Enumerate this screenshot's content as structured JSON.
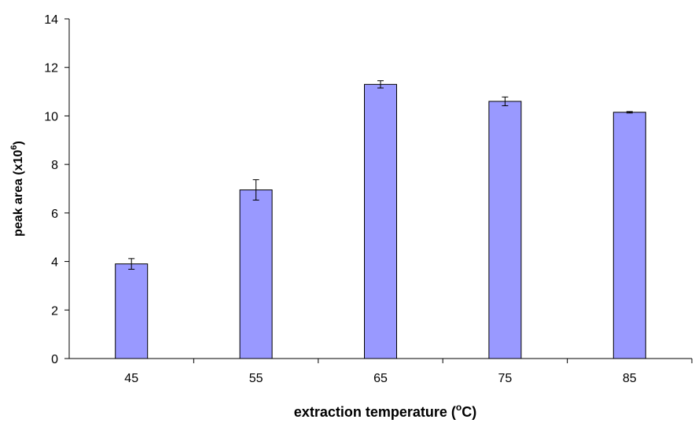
{
  "chart_data": {
    "type": "bar",
    "x_label": [
      "extraction temperature (",
      "o",
      "C)"
    ],
    "y_label": [
      "peak area (x10",
      "6",
      ")"
    ],
    "categories": [
      "45",
      "55",
      "65",
      "75",
      "85"
    ],
    "values": [
      3.9,
      6.95,
      11.3,
      10.6,
      10.15
    ],
    "errors": [
      0.22,
      0.42,
      0.15,
      0.18,
      0.03
    ],
    "color": "#9999ff",
    "ylim": [
      0,
      14
    ],
    "yticks": [
      0,
      2,
      4,
      6,
      8,
      10,
      12,
      14
    ],
    "grid": false
  }
}
